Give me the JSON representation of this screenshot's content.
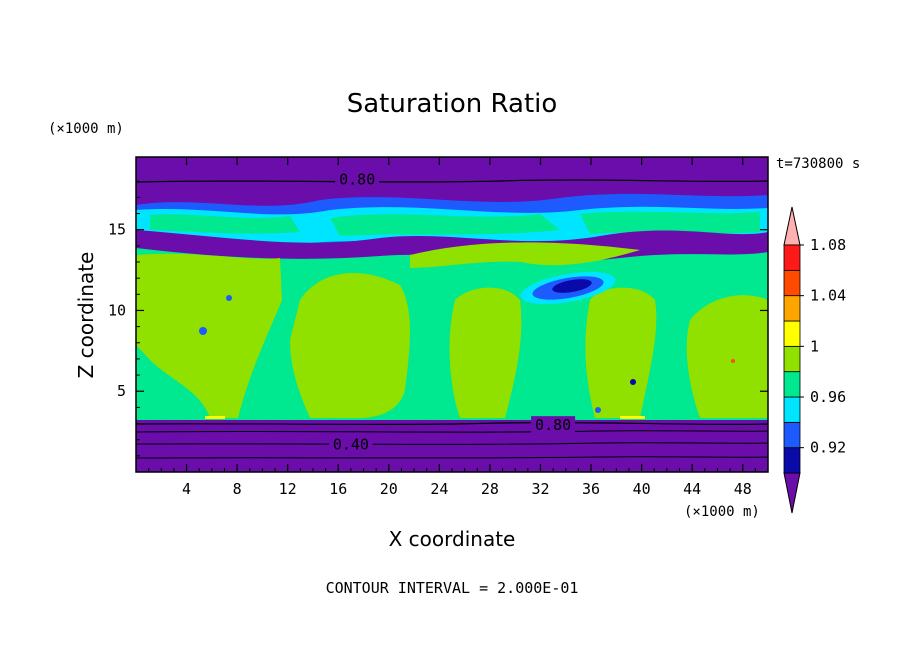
{
  "chart_data": {
    "type": "heatmap",
    "title": "Saturation Ratio",
    "xlabel": "X coordinate",
    "ylabel": "Z coordinate",
    "x_unit": "(×1000 m)",
    "y_unit": "(×1000 m)",
    "time_label": "t=730800 s",
    "footer": "CONTOUR INTERVAL = 2.000E-01",
    "xlim": [
      0,
      50
    ],
    "ylim": [
      0,
      19.5
    ],
    "x_ticks": [
      "4",
      "8",
      "12",
      "16",
      "20",
      "24",
      "28",
      "32",
      "36",
      "40",
      "44",
      "48"
    ],
    "x_tick_values": [
      4,
      8,
      12,
      16,
      20,
      24,
      28,
      32,
      36,
      40,
      44,
      48
    ],
    "y_ticks": [
      "5",
      "10",
      "15"
    ],
    "y_tick_values": [
      5,
      10,
      15
    ],
    "contour_labels": [
      {
        "text": "0.80",
        "x": 17.5,
        "z": 18.1
      },
      {
        "text": "0.80",
        "x": 33.0,
        "z": 2.9
      },
      {
        "text": "0.40",
        "x": 17.0,
        "z": 1.7
      }
    ],
    "colorbar": {
      "levels": [
        "0.92",
        "0.96",
        "1",
        "1.04",
        "1.08"
      ],
      "level_values": [
        0.92,
        0.96,
        1.0,
        1.04,
        1.08
      ],
      "colors": [
        "#6a0dab",
        "#0a0aa8",
        "#1e5bff",
        "#00e5ff",
        "#00e890",
        "#90e000",
        "#ffff00",
        "#ffa500",
        "#ff4a00",
        "#ff1a1a",
        "#ffb0b0"
      ]
    }
  }
}
